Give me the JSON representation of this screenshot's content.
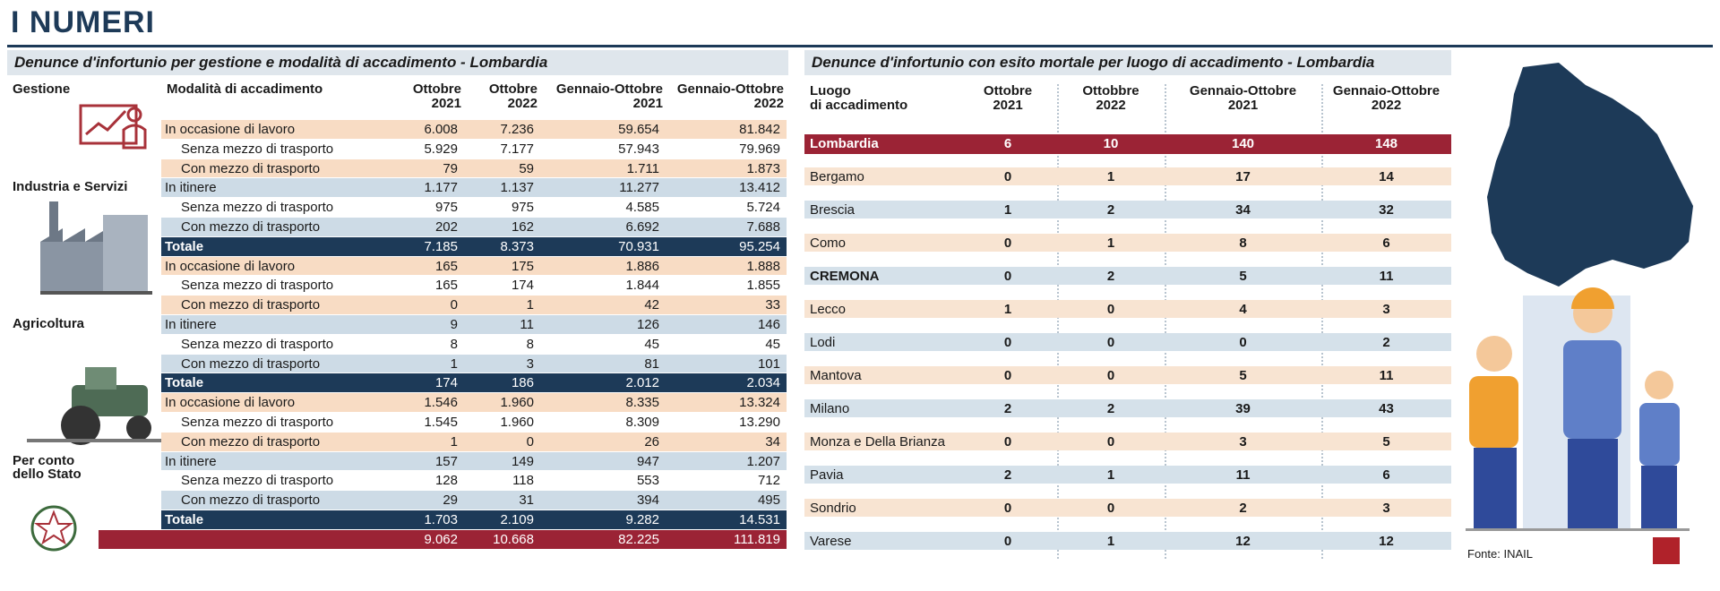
{
  "title": "I NUMERI",
  "left_table": {
    "title": "Denunce d'infortunio per gestione e modalità di accadimento - Lombardia",
    "headers": [
      "Gestione",
      "Modalità di accadimento",
      "Ottobre\n2021",
      "Ottobre\n2022",
      "Gennaio-Ottobre\n2021",
      "Gennaio-Ottobre\n2022"
    ],
    "groups": [
      {
        "name": "Industria e Servizi",
        "rows": [
          {
            "label": "In occasione di lavoro",
            "values": [
              "6.008",
              "7.236",
              "59.654",
              "81.842"
            ]
          },
          {
            "label": "Senza mezzo di trasporto",
            "values": [
              "5.929",
              "7.177",
              "57.943",
              "79.969"
            ]
          },
          {
            "label": "Con mezzo di trasporto",
            "values": [
              "79",
              "59",
              "1.711",
              "1.873"
            ]
          },
          {
            "label": "In itinere",
            "values": [
              "1.177",
              "1.137",
              "11.277",
              "13.412"
            ]
          },
          {
            "label": "Senza mezzo di trasporto",
            "values": [
              "975",
              "975",
              "4.585",
              "5.724"
            ]
          },
          {
            "label": "Con mezzo di trasporto",
            "values": [
              "202",
              "162",
              "6.692",
              "7.688"
            ]
          },
          {
            "label": "Totale",
            "values": [
              "7.185",
              "8.373",
              "70.931",
              "95.254"
            ]
          }
        ]
      },
      {
        "name": "Agricoltura",
        "rows": [
          {
            "label": "In occasione di lavoro",
            "values": [
              "165",
              "175",
              "1.886",
              "1.888"
            ]
          },
          {
            "label": "Senza mezzo di trasporto",
            "values": [
              "165",
              "174",
              "1.844",
              "1.855"
            ]
          },
          {
            "label": "Con mezzo di trasporto",
            "values": [
              "0",
              "1",
              "42",
              "33"
            ]
          },
          {
            "label": "In itinere",
            "values": [
              "9",
              "11",
              "126",
              "146"
            ]
          },
          {
            "label": "Senza mezzo di trasporto",
            "values": [
              "8",
              "8",
              "45",
              "45"
            ]
          },
          {
            "label": "Con mezzo di trasporto",
            "values": [
              "1",
              "3",
              "81",
              "101"
            ]
          },
          {
            "label": "Totale",
            "values": [
              "174",
              "186",
              "2.012",
              "2.034"
            ]
          }
        ]
      },
      {
        "name": "Per conto\ndello Stato",
        "rows": [
          {
            "label": "In occasione di lavoro",
            "values": [
              "1.546",
              "1.960",
              "8.335",
              "13.324"
            ]
          },
          {
            "label": "Senza mezzo di trasporto",
            "values": [
              "1.545",
              "1.960",
              "8.309",
              "13.290"
            ]
          },
          {
            "label": "Con mezzo di trasporto",
            "values": [
              "1",
              "0",
              "26",
              "34"
            ]
          },
          {
            "label": "In itinere",
            "values": [
              "157",
              "149",
              "947",
              "1.207"
            ]
          },
          {
            "label": "Senza mezzo di trasporto",
            "values": [
              "128",
              "118",
              "553",
              "712"
            ]
          },
          {
            "label": "Con mezzo di trasporto",
            "values": [
              "29",
              "31",
              "394",
              "495"
            ]
          },
          {
            "label": "Totale",
            "values": [
              "1.703",
              "2.109",
              "9.282",
              "14.531"
            ]
          }
        ]
      }
    ],
    "grand_total": [
      "9.062",
      "10.668",
      "82.225",
      "111.819"
    ]
  },
  "right_table": {
    "title": "Denunce d'infortunio con esito mortale per luogo di accadimento - Lombardia",
    "headers": [
      "Luogo\ndi accadimento",
      "Ottobre\n2021",
      "Ottobbre\n2022",
      "Gennaio-Ottobre\n2021",
      "Gennaio-Ottobre\n2022"
    ],
    "rows": [
      {
        "label": "Lombardia",
        "values": [
          6,
          10,
          140,
          148
        ]
      },
      {
        "label": "Bergamo",
        "values": [
          0,
          1,
          17,
          14
        ]
      },
      {
        "label": "Brescia",
        "values": [
          1,
          2,
          34,
          32
        ]
      },
      {
        "label": "Como",
        "values": [
          0,
          1,
          8,
          6
        ]
      },
      {
        "label": "CREMONA",
        "values": [
          0,
          2,
          5,
          11
        ]
      },
      {
        "label": "Lecco",
        "values": [
          1,
          0,
          4,
          3
        ]
      },
      {
        "label": "Lodi",
        "values": [
          0,
          0,
          0,
          2
        ]
      },
      {
        "label": "Mantova",
        "values": [
          0,
          0,
          5,
          11
        ]
      },
      {
        "label": "Milano",
        "values": [
          2,
          2,
          39,
          43
        ]
      },
      {
        "label": "Monza e Della Brianza",
        "values": [
          0,
          0,
          3,
          5
        ]
      },
      {
        "label": "Pavia",
        "values": [
          2,
          1,
          11,
          6
        ]
      },
      {
        "label": "Sondrio",
        "values": [
          0,
          0,
          2,
          3
        ]
      },
      {
        "label": "Varese",
        "values": [
          0,
          1,
          12,
          12
        ]
      }
    ]
  },
  "source": "Fonte: INAIL"
}
